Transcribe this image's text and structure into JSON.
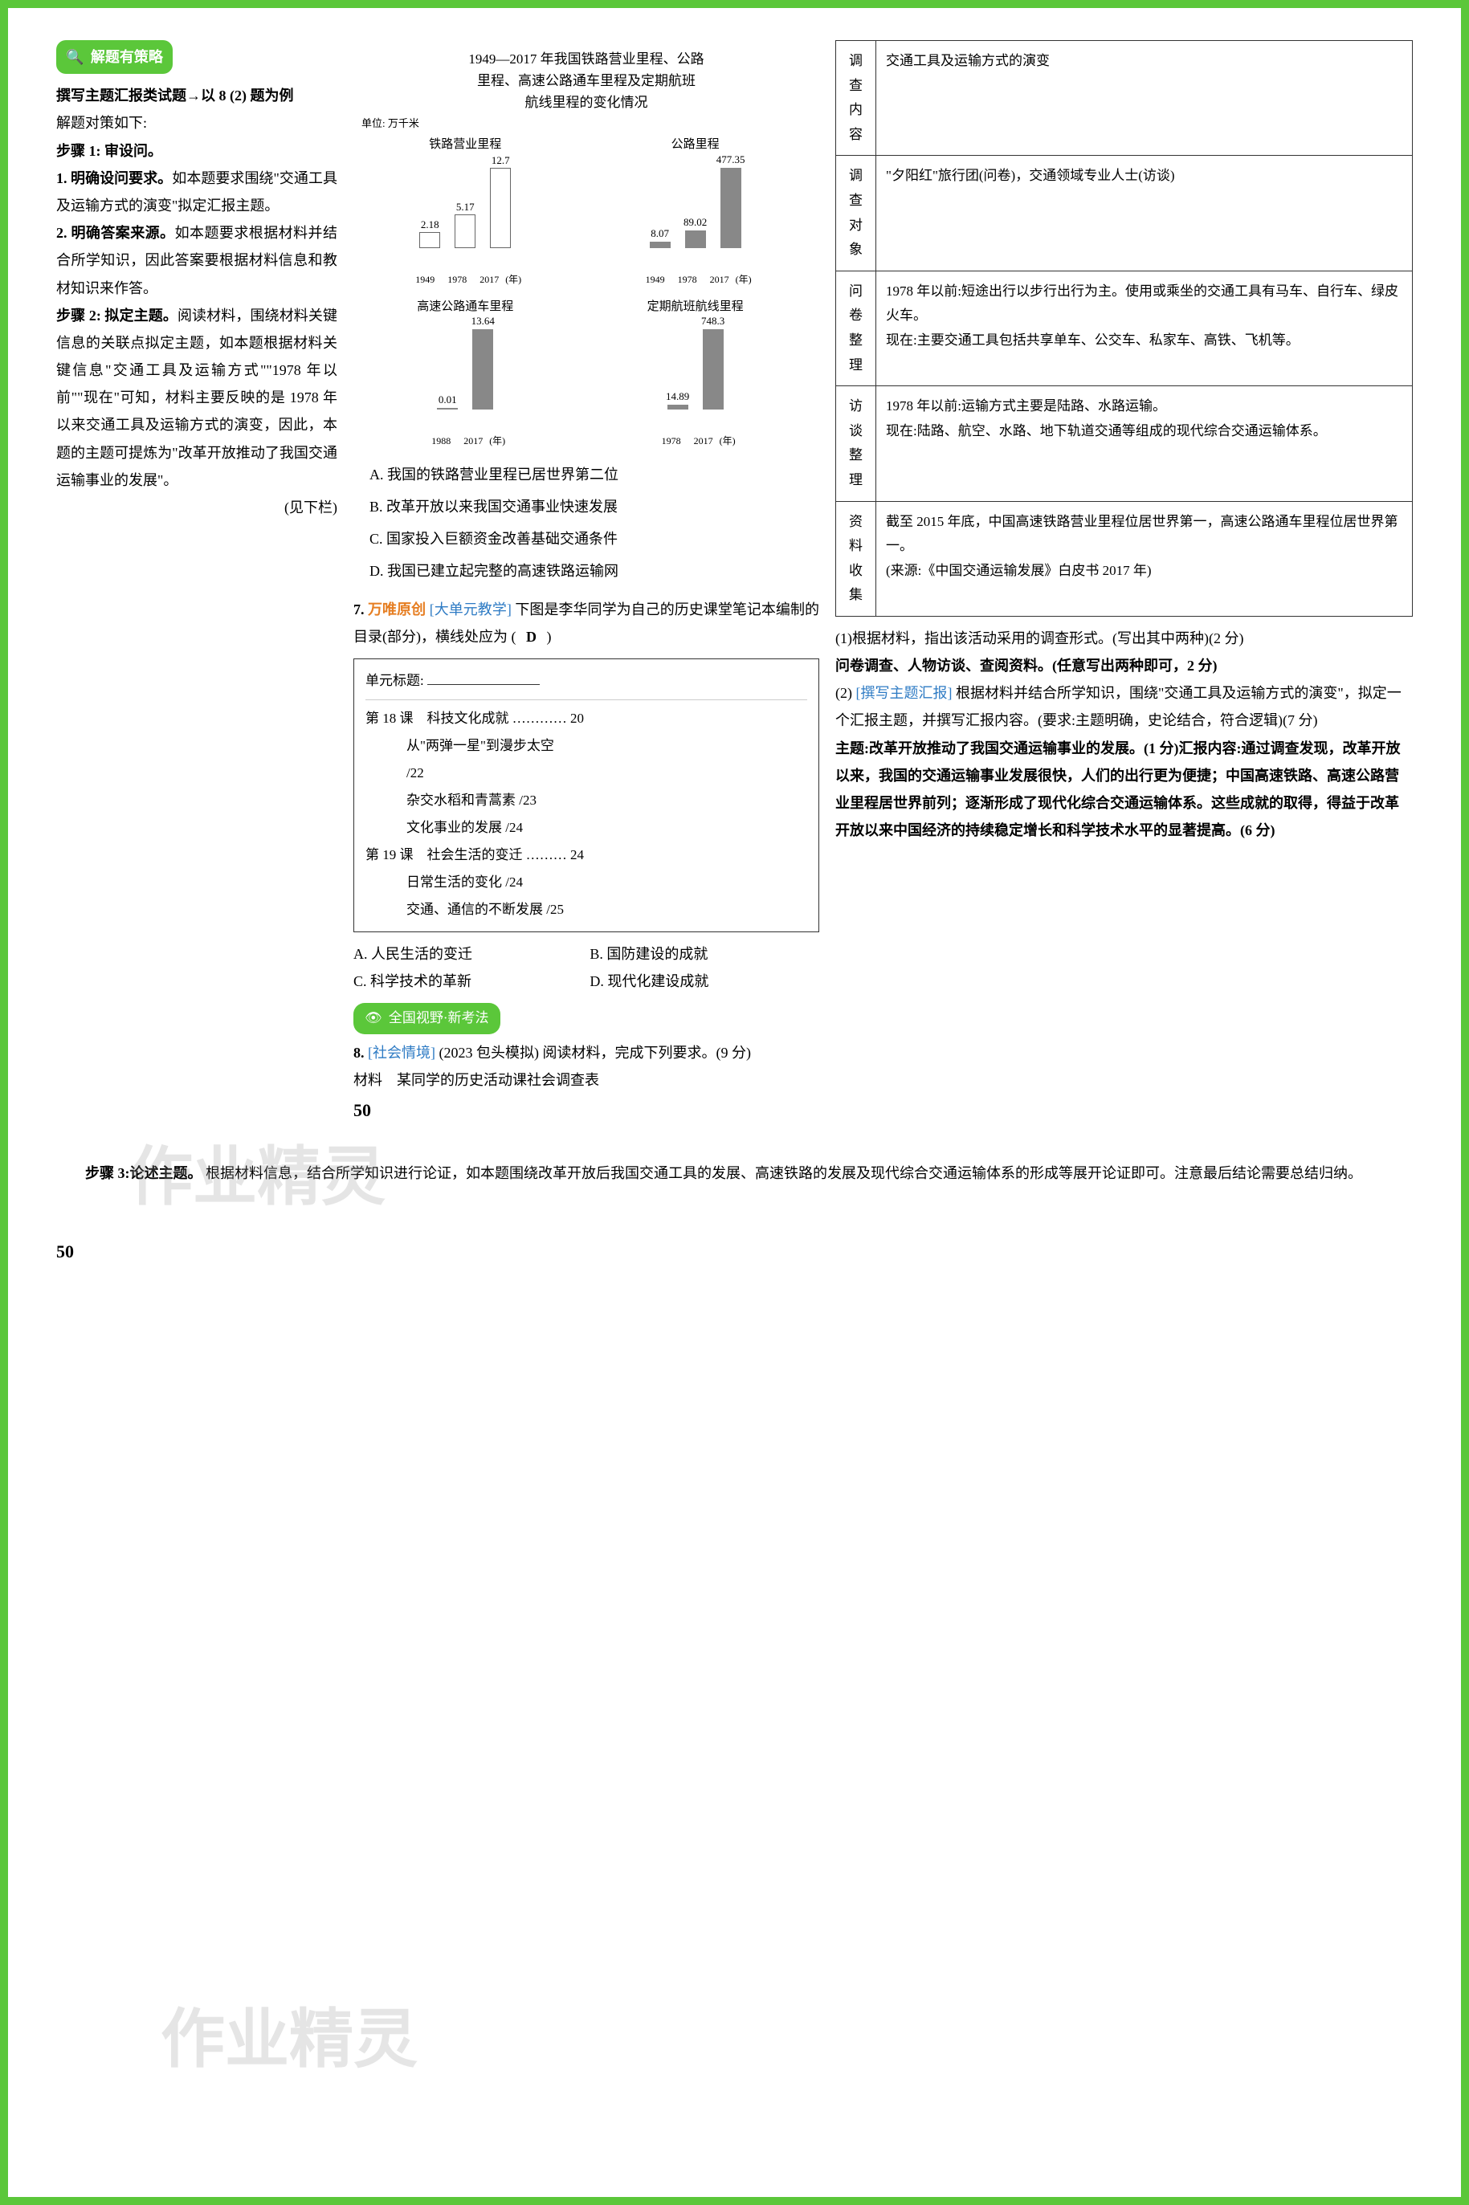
{
  "leftCol": {
    "strategyHeader": "解题有策略",
    "intro1": "撰写主题汇报类试题→以 8 (2) 题为例",
    "intro2": "解题对策如下:",
    "step1Label": "步骤 1: 审设问。",
    "p1_1": "1. 明确设问要求。",
    "p1_1_body": "如本题要求围绕\"交通工具及运输方式的演变\"拟定汇报主题。",
    "p1_2": "2. 明确答案来源。",
    "p1_2_body": "如本题要求根据材料并结合所学知识，因此答案要根据材料信息和教材知识来作答。",
    "step2Label": "步骤 2: 拟定主题。",
    "step2Body": "阅读材料，围绕材料关键信息的关联点拟定主题，如本题根据材料关键信息\"交通工具及运输方式\"\"1978 年以前\"\"现在\"可知，材料主要反映的是 1978 年以来交通工具及运输方式的演变，因此，本题的主题可提炼为\"改革开放推动了我国交通运输事业的发展\"。",
    "seeBelow": "(见下栏)"
  },
  "midCol": {
    "chartTitle1": "1949—2017 年我国铁路营业里程、公路",
    "chartTitle2": "里程、高速公路通车里程及定期航班",
    "chartTitle3": "航线里程的变化情况",
    "unitLabel": "单位: 万千米",
    "chart1": {
      "label": "铁路营业里程",
      "bars": [
        {
          "year": "1949",
          "val": 2.18,
          "h": 20,
          "class": "light"
        },
        {
          "year": "1978",
          "val": 5.17,
          "h": 42,
          "class": "light"
        },
        {
          "year": "2017",
          "val": 12.7,
          "h": 100,
          "class": "light"
        }
      ],
      "unit": "(年)"
    },
    "chart2": {
      "label": "公路里程",
      "bars": [
        {
          "year": "1949",
          "val": 8.07,
          "h": 8,
          "class": ""
        },
        {
          "year": "1978",
          "val": 89.02,
          "h": 22,
          "class": ""
        },
        {
          "year": "2017",
          "val": 477.35,
          "h": 100,
          "class": ""
        }
      ],
      "unit": "(年)"
    },
    "chart3": {
      "label": "高速公路通车里程",
      "bars": [
        {
          "year": "1988",
          "val": 0.01,
          "h": 2,
          "class": ""
        },
        {
          "year": "2017",
          "val": 13.64,
          "h": 100,
          "class": ""
        }
      ],
      "unit": "(年)"
    },
    "chart4": {
      "label": "定期航班航线里程",
      "bars": [
        {
          "year": "1978",
          "val": 14.89,
          "h": 6,
          "class": ""
        },
        {
          "year": "2017",
          "val": 748.3,
          "h": 100,
          "class": ""
        }
      ],
      "unit": "(年)"
    },
    "optA": "A. 我国的铁路营业里程已居世界第二位",
    "optB": "B. 改革开放以来我国交通事业快速发展",
    "optC": "C. 国家投入巨额资金改善基础交通条件",
    "optD": "D. 我国已建立起完整的高速铁路运输网",
    "q7num": "7.",
    "q7brand": "万唯原创",
    "q7tag": "[大单元教学]",
    "q7text": "下图是李华同学为自己的历史课堂笔记本编制的目录(部分)，横线处应为",
    "q7answer": "D",
    "notebook": {
      "titleLabel": "单元标题:",
      "lines": [
        "第 18 课　科技文化成就 ………… 20",
        "　　　从\"两弹一星\"到漫步太空",
        "　　　/22",
        "　　　杂交水稻和青蒿素 /23",
        "　　　文化事业的发展 /24",
        "第 19 课　社会生活的变迁 ……… 24",
        "　　　日常生活的变化 /24",
        "　　　交通、通信的不断发展 /25"
      ]
    },
    "q7optA": "A. 人民生活的变迁",
    "q7optB": "B. 国防建设的成就",
    "q7optC": "C. 科学技术的革新",
    "q7optD": "D. 现代化建设成就",
    "sectionBadge": "全国视野·新考法",
    "q8num": "8.",
    "q8tag": "[社会情境]",
    "q8src": "(2023 包头模拟)",
    "q8text": "阅读材料，完成下列要求。(9 分)",
    "materialLabel": "材料　某同学的历史活动课社会调查表",
    "pageNum": "50"
  },
  "rightCol": {
    "table": {
      "r1": {
        "label": "调查内容",
        "content": "交通工具及运输方式的演变"
      },
      "r2": {
        "label": "调查对象",
        "content": "\"夕阳红\"旅行团(问卷)，交通领域专业人士(访谈)"
      },
      "r3": {
        "label": "问卷整理",
        "content": "1978 年以前:短途出行以步行出行为主。使用或乘坐的交通工具有马车、自行车、绿皮火车。\n现在:主要交通工具包括共享单车、公交车、私家车、高铁、飞机等。"
      },
      "r4": {
        "label": "访谈整理",
        "content": "1978 年以前:运输方式主要是陆路、水路运输。\n现在:陆路、航空、水路、地下轨道交通等组成的现代综合交通运输体系。"
      },
      "r5": {
        "label": "资料收集",
        "content": "截至 2015 年底，中国高速铁路营业里程位居世界第一，高速公路通车里程位居世界第一。\n(来源:《中国交通运输发展》白皮书 2017 年)"
      }
    },
    "q1": "(1)根据材料，指出该活动采用的调查形式。(写出其中两种)(2 分)",
    "q1ans": "问卷调查、人物访谈、查阅资料。(任意写出两种即可，2 分)",
    "q2tag": "[撰写主题汇报]",
    "q2": "根据材料并结合所学知识，围绕\"交通工具及运输方式的演变\"，拟定一个汇报主题，并撰写汇报内容。(要求:主题明确，史论结合，符合逻辑)(7 分)",
    "q2ans": "主题:改革开放推动了我国交通运输事业的发展。(1 分)汇报内容:通过调查发现，改革开放以来，我国的交通运输事业发展很快，人们的出行更为便捷；中国高速铁路、高速公路营业里程居世界前列；逐渐形成了现代化综合交通运输体系。这些成就的取得，得益于改革开放以来中国经济的持续稳定增长和科学技术水平的显著提高。(6 分)"
  },
  "footer": {
    "step3": "步骤 3:论述主题。",
    "step3body": "根据材料信息，结合所学知识进行论证，如本题围绕改革开放后我国交通工具的发展、高速铁路的发展及现代综合交通运输体系的形成等展开论证即可。注意最后结论需要总结归纳。",
    "pageNum": "50"
  }
}
